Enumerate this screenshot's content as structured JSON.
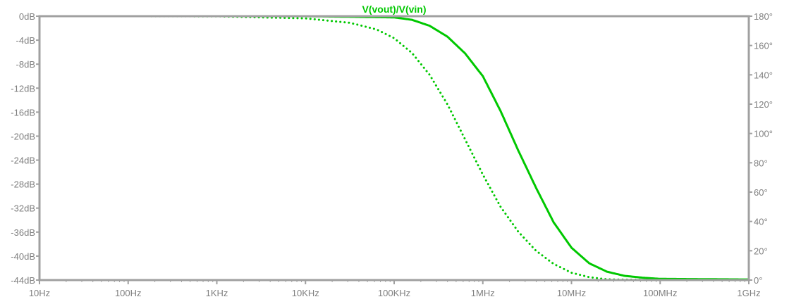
{
  "chart_data": {
    "type": "line",
    "title": "V(vout)/V(vin)",
    "x_scale": "log",
    "x_ticks": [
      {
        "value": 10,
        "label": "10Hz"
      },
      {
        "value": 100,
        "label": "100Hz"
      },
      {
        "value": 1000,
        "label": "1KHz"
      },
      {
        "value": 10000,
        "label": "10KHz"
      },
      {
        "value": 100000,
        "label": "100KHz"
      },
      {
        "value": 1000000,
        "label": "1MHz"
      },
      {
        "value": 10000000,
        "label": "10MHz"
      },
      {
        "value": 100000000,
        "label": "100MHz"
      },
      {
        "value": 1000000000,
        "label": "1GHz"
      }
    ],
    "xlim": [
      10,
      1000000000
    ],
    "y_left": {
      "unit": "dB",
      "ylim": [
        -44,
        0
      ],
      "ticks": [
        {
          "value": 0,
          "label": "0dB"
        },
        {
          "value": -4,
          "label": "-4dB"
        },
        {
          "value": -8,
          "label": "-8dB"
        },
        {
          "value": -12,
          "label": "-12dB"
        },
        {
          "value": -16,
          "label": "-16dB"
        },
        {
          "value": -20,
          "label": "-20dB"
        },
        {
          "value": -24,
          "label": "-24dB"
        },
        {
          "value": -28,
          "label": "-28dB"
        },
        {
          "value": -32,
          "label": "-32dB"
        },
        {
          "value": -36,
          "label": "-36dB"
        },
        {
          "value": -40,
          "label": "-40dB"
        },
        {
          "value": -44,
          "label": "-44dB"
        }
      ]
    },
    "y_right": {
      "unit": "°",
      "ylim": [
        0,
        180
      ],
      "ticks": [
        {
          "value": 180,
          "label": "180°"
        },
        {
          "value": 160,
          "label": "160°"
        },
        {
          "value": 140,
          "label": "140°"
        },
        {
          "value": 120,
          "label": "120°"
        },
        {
          "value": 100,
          "label": "100°"
        },
        {
          "value": 80,
          "label": "80°"
        },
        {
          "value": 60,
          "label": "60°"
        },
        {
          "value": 40,
          "label": "40°"
        },
        {
          "value": 20,
          "label": "20°"
        },
        {
          "value": 0,
          "label": "0°"
        }
      ]
    },
    "grid": false,
    "series": [
      {
        "name": "V(vout)/V(vin)",
        "role": "magnitude",
        "axis": "left",
        "style": "solid",
        "color": "#00c800",
        "x": [
          10,
          100,
          1000,
          10000,
          100000,
          158489,
          251189,
          398107,
          630957,
          1000000,
          1584893,
          2511886,
          3981072,
          6309573,
          10000000,
          15848932,
          25118864,
          39810717,
          63095734,
          100000000,
          1000000000
        ],
        "y": [
          0,
          0,
          0,
          0,
          -0.2,
          -0.6,
          -1.6,
          -3.4,
          -6.2,
          -10,
          -15.8,
          -22.4,
          -28.6,
          -34.4,
          -38.6,
          -41.2,
          -42.6,
          -43.3,
          -43.6,
          -43.8,
          -43.9
        ]
      },
      {
        "name": "V(vout)/V(vin)",
        "role": "phase",
        "axis": "right",
        "style": "dotted",
        "color": "#00c800",
        "x": [
          10,
          100,
          1000,
          10000,
          31623,
          63096,
          100000,
          158489,
          251189,
          398107,
          630957,
          1000000,
          1584893,
          2511886,
          3981072,
          6309573,
          10000000,
          15848932,
          25118864,
          100000000,
          1000000000
        ],
        "y": [
          180,
          180,
          179.9,
          178.5,
          175.5,
          171,
          165,
          155,
          140,
          120,
          96,
          72,
          50,
          33,
          20,
          11,
          5,
          2,
          0.5,
          0,
          0
        ]
      }
    ]
  }
}
